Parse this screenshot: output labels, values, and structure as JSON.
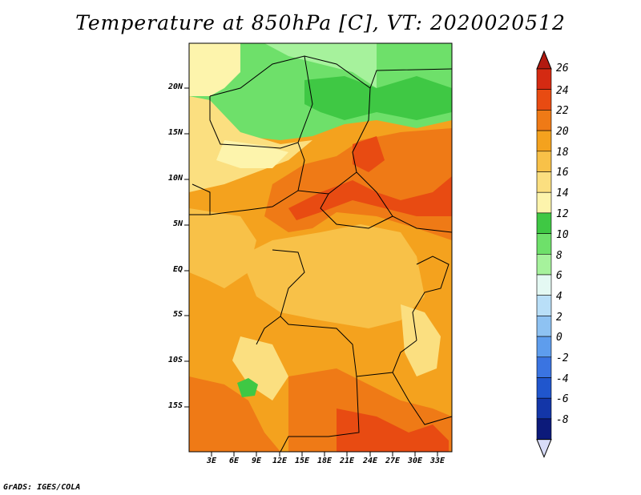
{
  "title": "Temperature at 850hPa [C], VT: 2020020512",
  "footer": "GrADS: IGES/COLA",
  "lat_labels": [
    "20N",
    "15N",
    "10N",
    "5N",
    "EQ",
    "5S",
    "10S",
    "15S"
  ],
  "lon_labels": [
    "3E",
    "6E",
    "9E",
    "12E",
    "15E",
    "18E",
    "21E",
    "24E",
    "27E",
    "30E",
    "33E"
  ],
  "colorbar": {
    "labels": [
      "26",
      "24",
      "22",
      "20",
      "18",
      "16",
      "14",
      "12",
      "10",
      "8",
      "6",
      "4",
      "2",
      "0",
      "-2",
      "-4",
      "-6",
      "-8"
    ],
    "colors": [
      "#d42a12",
      "#e84b12",
      "#ef7a16",
      "#f4a21e",
      "#f8c148",
      "#fbdf80",
      "#fdf4ac",
      "#3fc844",
      "#6ee06a",
      "#a6f29c",
      "#e4f9f3",
      "#b9dff8",
      "#8ec2f2",
      "#5e9ded",
      "#3a74e1",
      "#2056cd",
      "#1336a8",
      "#0c1a7a"
    ],
    "over_color": "#b21a10",
    "under_color": "#d8dcf8"
  }
}
